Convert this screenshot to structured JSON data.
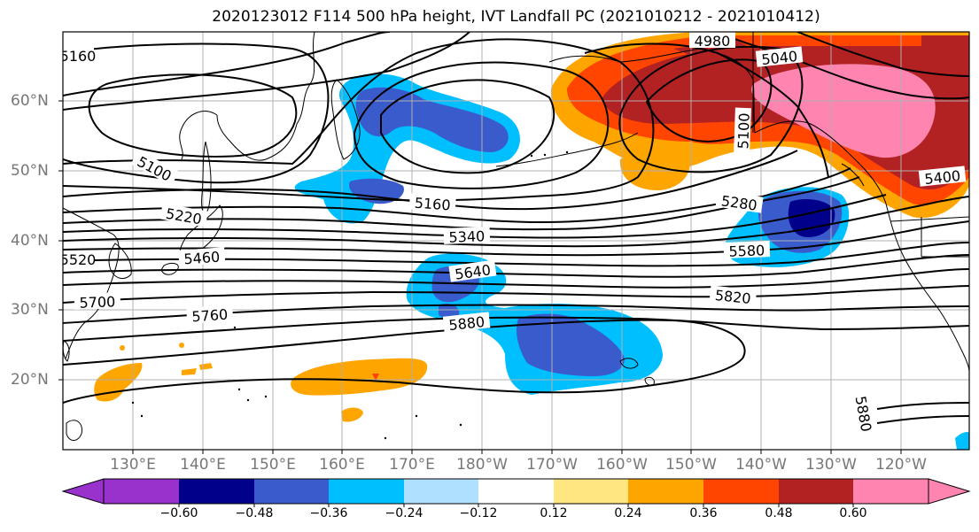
{
  "title": "2020123012 F114 500 hPa height, IVT Landfall PC (2021010212 - 2021010412)",
  "lat_labels": [
    "60°N",
    "50°N",
    "40°N",
    "30°N",
    "20°N"
  ],
  "lon_labels": [
    "130°E",
    "140°E",
    "150°E",
    "160°E",
    "170°E",
    "180°W",
    "170°W",
    "160°W",
    "150°W",
    "140°W",
    "130°W",
    "120°W"
  ],
  "contour_labels": [
    "5220",
    "5160",
    "5100",
    "5220",
    "5460",
    "5520",
    "5700",
    "5760",
    "5160",
    "5340",
    "5640",
    "5880",
    "4980",
    "5040",
    "5100",
    "5280",
    "5400",
    "5580",
    "5820",
    "5880"
  ],
  "colorbar": {
    "ticks": [
      "−0.60",
      "−0.48",
      "−0.36",
      "−0.24",
      "−0.12",
      "0.12",
      "0.24",
      "0.36",
      "0.48",
      "0.60"
    ],
    "colors": [
      "#9932cc",
      "#00008b",
      "#3a5bcc",
      "#00bfff",
      "#b0e0ff",
      "#ffffff",
      "#ffe680",
      "#ffa500",
      "#ff4500",
      "#b22222",
      "#ff85b0"
    ]
  }
}
